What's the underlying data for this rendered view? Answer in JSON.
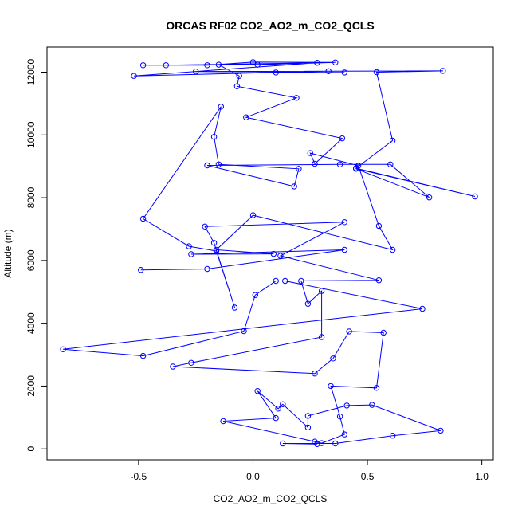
{
  "chart_data": {
    "type": "line",
    "title": "ORCAS RF02 CO2_AO2_m_CO2_QCLS",
    "xlabel": "CO2_AO2_m_CO2_QCLS",
    "ylabel": "Altitude (m)",
    "xlim": [
      -0.9,
      1.05
    ],
    "ylim": [
      -350,
      12800
    ],
    "xticks": [
      -0.5,
      0.0,
      0.5,
      1.0
    ],
    "xtick_labels": [
      "-0.5",
      "0.0",
      "0.5",
      "1.0"
    ],
    "yticks": [
      0,
      2000,
      4000,
      6000,
      8000,
      10000,
      12000
    ],
    "ytick_labels": [
      "0",
      "2000",
      "4000",
      "6000",
      "8000",
      "10000",
      "12000"
    ],
    "grid": false,
    "series": [
      {
        "color": "#0000ff",
        "marker": "open-circle",
        "points": [
          [
            0.28,
            150
          ],
          [
            0.13,
            170
          ],
          [
            0.36,
            170
          ],
          [
            0.61,
            420
          ],
          [
            0.82,
            580
          ],
          [
            0.52,
            1400
          ],
          [
            0.41,
            1380
          ],
          [
            0.24,
            1050
          ],
          [
            0.24,
            680
          ],
          [
            0.13,
            1420
          ],
          [
            0.11,
            1280
          ],
          [
            0.02,
            1840
          ],
          [
            0.1,
            980
          ],
          [
            -0.13,
            880
          ],
          [
            0.27,
            230
          ],
          [
            0.3,
            180
          ],
          [
            0.4,
            460
          ],
          [
            0.38,
            1030
          ],
          [
            0.34,
            2000
          ],
          [
            0.54,
            1940
          ],
          [
            0.57,
            3700
          ],
          [
            0.42,
            3740
          ],
          [
            0.35,
            2880
          ],
          [
            0.27,
            2400
          ],
          [
            -0.35,
            2620
          ],
          [
            -0.27,
            2740
          ],
          [
            0.3,
            3560
          ],
          [
            0.3,
            5030
          ],
          [
            0.24,
            4620
          ],
          [
            0.21,
            5350
          ],
          [
            0.1,
            5350
          ],
          [
            0.01,
            4900
          ],
          [
            -0.04,
            3750
          ],
          [
            -0.48,
            2960
          ],
          [
            -0.83,
            3170
          ],
          [
            0.74,
            4460
          ],
          [
            0.14,
            5350
          ],
          [
            0.55,
            5370
          ],
          [
            0.12,
            6150
          ],
          [
            0.4,
            7220
          ],
          [
            -0.21,
            7080
          ],
          [
            -0.17,
            6560
          ],
          [
            -0.08,
            4500
          ],
          [
            -0.16,
            6300
          ],
          [
            -0.28,
            6450
          ],
          [
            -0.48,
            7330
          ],
          [
            -0.14,
            10900
          ],
          [
            -0.17,
            9940
          ],
          [
            -0.15,
            9060
          ],
          [
            0.2,
            8920
          ],
          [
            0.18,
            8360
          ],
          [
            -0.2,
            9030
          ],
          [
            0.38,
            9060
          ],
          [
            0.6,
            9060
          ],
          [
            0.77,
            8010
          ],
          [
            0.45,
            8920
          ],
          [
            0.97,
            8040
          ],
          [
            0.45,
            8940
          ],
          [
            0.61,
            9820
          ],
          [
            0.54,
            12000
          ],
          [
            0.83,
            12040
          ],
          [
            -0.25,
            12020
          ],
          [
            0.4,
            11990
          ],
          [
            0.1,
            11990
          ],
          [
            0.33,
            12030
          ],
          [
            -0.52,
            11880
          ],
          [
            0.28,
            12300
          ],
          [
            -0.38,
            12220
          ],
          [
            -0.48,
            12220
          ],
          [
            -0.2,
            12220
          ],
          [
            0.0,
            12320
          ],
          [
            0.36,
            12310
          ],
          [
            0.02,
            12240
          ],
          [
            -0.15,
            12240
          ],
          [
            -0.06,
            11880
          ],
          [
            -0.07,
            11550
          ],
          [
            0.19,
            11180
          ],
          [
            -0.03,
            10560
          ],
          [
            0.39,
            9890
          ],
          [
            0.27,
            9080
          ],
          [
            0.25,
            9420
          ],
          [
            0.46,
            9020
          ],
          [
            0.55,
            7100
          ],
          [
            0.61,
            6340
          ],
          [
            0.0,
            7440
          ],
          [
            -0.16,
            6340
          ],
          [
            0.09,
            6210
          ],
          [
            -0.27,
            6200
          ],
          [
            0.4,
            6340
          ],
          [
            -0.2,
            5730
          ],
          [
            -0.49,
            5700
          ]
        ]
      }
    ]
  }
}
